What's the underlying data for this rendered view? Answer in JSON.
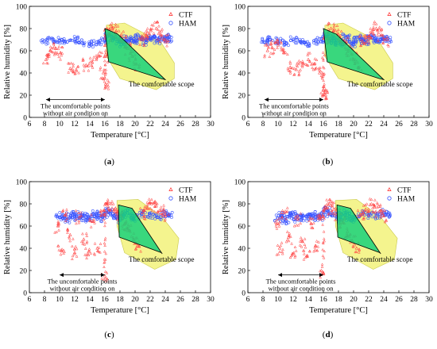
{
  "chart_data": [
    {
      "type": "scatter",
      "panel": "a",
      "caption_label": "a",
      "xlabel": "Temperature [°C]",
      "ylabel": "Relative humidity [%]",
      "xlim": [
        6,
        30
      ],
      "ylim": [
        0,
        100
      ],
      "x_ticks": [
        6,
        8,
        10,
        12,
        14,
        16,
        18,
        20,
        22,
        24,
        26,
        28,
        30
      ],
      "y_ticks": [
        0,
        20,
        40,
        60,
        80,
        100
      ],
      "legend_position": "top-right",
      "series": [
        {
          "name": "CTF",
          "marker": "triangle",
          "color": "#ff4040",
          "x": [
            8.2,
            8.8,
            9.5,
            10.1,
            11.4,
            12.2,
            13.5,
            14.3,
            15.2,
            15.8,
            16.1,
            16.3,
            16.5,
            17.0,
            17.5,
            18.0,
            18.4,
            19.0,
            19.6,
            20.2,
            20.8,
            21.5,
            22.1,
            22.8,
            23.4,
            24.0
          ],
          "y": [
            52,
            60,
            62,
            58,
            44,
            43,
            47,
            50,
            55,
            40,
            30,
            55,
            75,
            80,
            78,
            72,
            68,
            62,
            55,
            48,
            70,
            74,
            78,
            80,
            74,
            70
          ]
        },
        {
          "name": "HAM",
          "marker": "circle",
          "color": "#3a55ff",
          "x": [
            8.0,
            9.0,
            10.0,
            11.0,
            12.0,
            13.0,
            14.0,
            15.0,
            16.0,
            16.5,
            17.0,
            17.5,
            18.0,
            18.5,
            19.0,
            19.5,
            20.0,
            20.5,
            21.0,
            21.5,
            22.0,
            22.5,
            23.0,
            23.5,
            24.0,
            24.5
          ],
          "y": [
            69,
            70,
            69,
            68,
            70,
            67,
            66,
            68,
            70,
            74,
            72,
            70,
            68,
            66,
            71,
            69,
            67,
            72,
            70,
            68,
            71,
            73,
            69,
            70,
            72,
            70
          ]
        }
      ],
      "comfort_zone_polygon": {
        "x": [
          16.0,
          17.7,
          24.0,
          23.4,
          16.5
        ],
        "y": [
          80.0,
          75.0,
          34.0,
          35.0,
          50.0
        ]
      },
      "envelope_polygon": {
        "x": [
          16.2,
          18.6,
          23.4,
          25.2,
          25.2,
          22.8,
          18.0,
          16.2
        ],
        "y": [
          83.0,
          85.0,
          68.0,
          49.0,
          35.0,
          25.0,
          35.0,
          55.0
        ]
      },
      "annotations": {
        "comfortable": "The comfortable scope",
        "uncomfortable_line1": "The uncomfortable points",
        "uncomfortable_line2": "without air condition on",
        "arrow_x": [
          8.2,
          16.0
        ],
        "arrow_y": 16
      }
    },
    {
      "type": "scatter",
      "panel": "b",
      "caption_label": "b",
      "xlabel": "Temperature [°C]",
      "ylabel": "Relative humidity [%]",
      "xlim": [
        6,
        30
      ],
      "ylim": [
        0,
        100
      ],
      "x_ticks": [
        6,
        8,
        10,
        12,
        14,
        16,
        18,
        20,
        22,
        24,
        26,
        28,
        30
      ],
      "y_ticks": [
        0,
        20,
        40,
        60,
        80,
        100
      ],
      "legend_position": "top-right",
      "series": [
        {
          "name": "CTF",
          "marker": "triangle",
          "color": "#ff4040",
          "x": [
            8.6,
            9.2,
            10.0,
            10.8,
            11.6,
            12.4,
            13.2,
            14.0,
            14.8,
            15.5,
            16.0,
            16.3,
            16.6,
            17.0,
            17.6,
            18.2,
            18.8,
            19.4,
            20.0,
            20.6,
            21.2,
            21.8,
            22.4,
            23.0,
            23.6,
            24.2
          ],
          "y": [
            60,
            63,
            65,
            58,
            45,
            43,
            47,
            52,
            48,
            40,
            25,
            20,
            72,
            80,
            78,
            72,
            66,
            60,
            52,
            45,
            68,
            72,
            76,
            80,
            74,
            70
          ]
        },
        {
          "name": "HAM",
          "marker": "circle",
          "color": "#3a55ff",
          "x": [
            8.2,
            9.0,
            10.0,
            11.0,
            12.0,
            13.0,
            14.0,
            15.0,
            16.0,
            16.5,
            17.0,
            17.5,
            18.0,
            18.5,
            19.0,
            19.5,
            20.0,
            20.5,
            21.0,
            21.5,
            22.0,
            22.5,
            23.0,
            23.5,
            24.0,
            24.5
          ],
          "y": [
            68,
            70,
            69,
            67,
            70,
            68,
            66,
            69,
            70,
            73,
            71,
            69,
            67,
            66,
            72,
            68,
            66,
            71,
            70,
            68,
            71,
            72,
            69,
            70,
            71,
            69
          ]
        }
      ],
      "comfort_zone_polygon": {
        "x": [
          16.0,
          17.7,
          24.0,
          23.4,
          16.5
        ],
        "y": [
          80.0,
          75.0,
          34.0,
          35.0,
          50.0
        ]
      },
      "envelope_polygon": {
        "x": [
          16.2,
          18.6,
          23.4,
          25.2,
          25.2,
          22.8,
          18.0,
          16.2
        ],
        "y": [
          83.0,
          85.0,
          68.0,
          49.0,
          35.0,
          25.0,
          35.0,
          55.0
        ]
      },
      "annotations": {
        "comfortable": "The comfortable scope",
        "uncomfortable_line1": "The uncomfortable points",
        "uncomfortable_line2": "without air condition on",
        "arrow_x": [
          8.2,
          16.0
        ],
        "arrow_y": 16
      }
    },
    {
      "type": "scatter",
      "panel": "c",
      "caption_label": "c",
      "xlabel": "Temperature [°C]",
      "ylabel": "Relative humidity [%]",
      "xlim": [
        6,
        30
      ],
      "ylim": [
        0,
        100
      ],
      "x_ticks": [
        6,
        8,
        10,
        12,
        14,
        16,
        18,
        20,
        22,
        24,
        26,
        28,
        30
      ],
      "y_ticks": [
        0,
        20,
        40,
        60,
        80,
        100
      ],
      "legend_position": "top-right",
      "series": [
        {
          "name": "CTF",
          "marker": "triangle",
          "color": "#ff4040",
          "x": [
            9.8,
            10.2,
            10.8,
            11.4,
            12.0,
            12.6,
            13.2,
            13.8,
            14.4,
            15.0,
            15.6,
            16.0,
            16.4,
            16.8,
            17.4,
            18.0,
            18.6,
            19.2,
            19.8,
            20.4,
            21.0,
            21.6,
            22.2,
            22.8,
            23.4,
            24.0
          ],
          "y": [
            60,
            38,
            70,
            52,
            36,
            68,
            48,
            34,
            64,
            40,
            70,
            15,
            78,
            80,
            76,
            70,
            62,
            56,
            48,
            42,
            72,
            76,
            80,
            78,
            74,
            70
          ]
        },
        {
          "name": "HAM",
          "marker": "circle",
          "color": "#3a55ff",
          "x": [
            10.0,
            10.5,
            11.0,
            11.5,
            12.0,
            12.5,
            13.0,
            13.5,
            14.0,
            14.5,
            15.0,
            15.5,
            16.0,
            16.5,
            17.0,
            17.5,
            18.0,
            18.5,
            19.0,
            19.5,
            20.0,
            21.0,
            22.0,
            23.0,
            24.0,
            24.5
          ],
          "y": [
            68,
            70,
            66,
            69,
            71,
            67,
            70,
            66,
            68,
            71,
            69,
            67,
            70,
            73,
            71,
            68,
            66,
            70,
            72,
            67,
            69,
            71,
            70,
            68,
            71,
            70
          ]
        }
      ],
      "comfort_zone_polygon": {
        "x": [
          17.8,
          19.6,
          23.6,
          23.5,
          17.9
        ],
        "y": [
          79.0,
          76.0,
          35.0,
          36.0,
          50.0
        ]
      },
      "envelope_polygon": {
        "x": [
          17.6,
          20.4,
          23.6,
          25.8,
          25.4,
          22.6,
          18.6,
          17.6
        ],
        "y": [
          83.0,
          84.0,
          68.0,
          49.0,
          30.0,
          21.0,
          36.0,
          60.0
        ]
      },
      "annotations": {
        "comfortable": "The comfortable scope",
        "uncomfortable_line1": "The uncomfortable points",
        "uncomfortable_line2": "without air condition on",
        "arrow_x": [
          10.0,
          16.0
        ],
        "arrow_y": 16
      }
    },
    {
      "type": "scatter",
      "panel": "d",
      "caption_label": "d",
      "xlabel": "Temperature [°C]",
      "ylabel": "Relative humidity [%]",
      "xlim": [
        6,
        30
      ],
      "ylim": [
        0,
        100
      ],
      "x_ticks": [
        6,
        8,
        10,
        12,
        14,
        16,
        18,
        20,
        22,
        24,
        26,
        28,
        30
      ],
      "y_ticks": [
        0,
        20,
        40,
        60,
        80,
        100
      ],
      "legend_position": "top-right",
      "series": [
        {
          "name": "CTF",
          "marker": "triangle",
          "color": "#ff4040",
          "x": [
            9.8,
            10.2,
            10.8,
            11.4,
            12.0,
            12.6,
            13.2,
            13.8,
            14.4,
            15.0,
            15.6,
            16.0,
            16.4,
            16.8,
            17.4,
            18.0,
            18.6,
            19.2,
            19.8,
            20.4,
            21.0,
            21.6,
            22.2,
            22.8,
            23.4,
            24.0
          ],
          "y": [
            62,
            40,
            72,
            50,
            35,
            66,
            46,
            33,
            62,
            42,
            68,
            18,
            76,
            80,
            75,
            70,
            63,
            55,
            47,
            40,
            70,
            75,
            79,
            78,
            73,
            69
          ]
        },
        {
          "name": "HAM",
          "marker": "circle",
          "color": "#3a55ff",
          "x": [
            10.0,
            10.5,
            11.0,
            11.5,
            12.0,
            12.5,
            13.0,
            13.5,
            14.0,
            14.5,
            15.0,
            15.5,
            16.0,
            16.5,
            17.0,
            17.5,
            18.0,
            18.5,
            19.0,
            19.5,
            20.0,
            21.0,
            22.0,
            23.0,
            24.0,
            24.5
          ],
          "y": [
            67,
            70,
            65,
            69,
            71,
            66,
            70,
            67,
            69,
            71,
            68,
            67,
            70,
            74,
            71,
            69,
            66,
            70,
            72,
            66,
            68,
            71,
            70,
            69,
            72,
            70
          ]
        }
      ],
      "comfort_zone_polygon": {
        "x": [
          17.8,
          19.6,
          23.6,
          23.5,
          17.9
        ],
        "y": [
          79.0,
          76.0,
          35.0,
          36.0,
          50.0
        ]
      },
      "envelope_polygon": {
        "x": [
          17.6,
          20.4,
          23.6,
          25.8,
          25.4,
          22.6,
          18.6,
          17.6
        ],
        "y": [
          83.0,
          84.0,
          68.0,
          49.0,
          30.0,
          21.0,
          36.0,
          60.0
        ]
      },
      "annotations": {
        "comfortable": "The comfortable scope",
        "uncomfortable_line1": "The uncomfortable points",
        "uncomfortable_line2": "without air condition on",
        "arrow_x": [
          10.0,
          16.0
        ],
        "arrow_y": 16
      }
    }
  ],
  "style": {
    "comfort_fill": "#17d17a",
    "envelope_fill": "#f2f27a",
    "ctf_color": "#ff4040",
    "ham_color": "#3a55ff"
  }
}
